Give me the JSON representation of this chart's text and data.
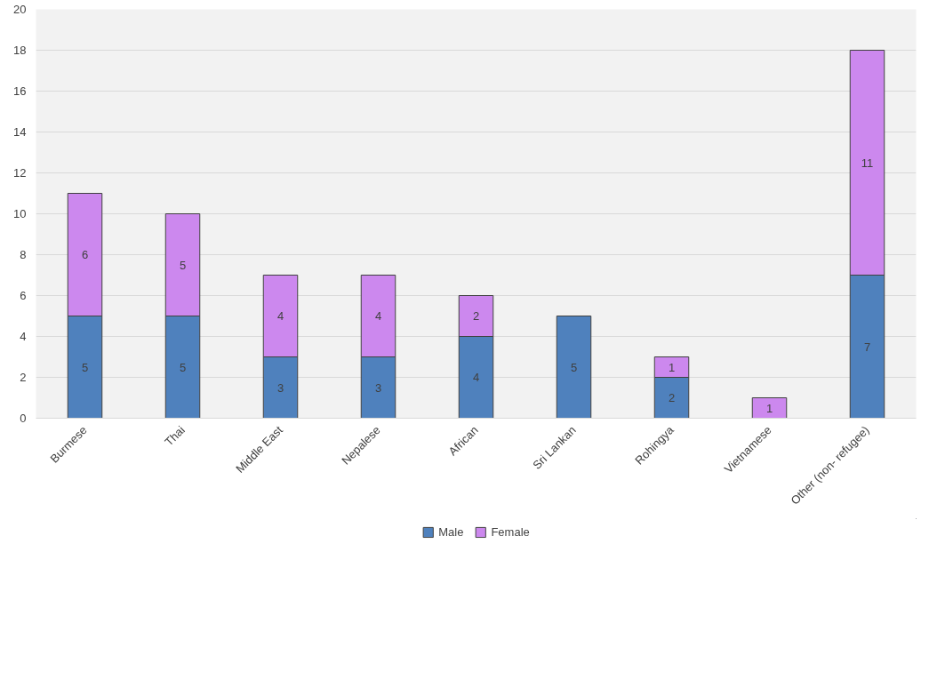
{
  "chart_data": {
    "type": "bar",
    "stacked": true,
    "categories": [
      "Burmese",
      "Thai",
      "Middle East",
      "Nepalese",
      "African",
      "Sri Lankan",
      "Rohingya",
      "Vietnamese",
      "Other (non- refugee)"
    ],
    "series": [
      {
        "name": "Male",
        "color": "#4f81bd",
        "values": [
          5,
          5,
          3,
          3,
          4,
          5,
          2,
          null,
          7
        ]
      },
      {
        "name": "Female",
        "color": "#cc88ee",
        "values": [
          6,
          5,
          4,
          4,
          2,
          null,
          1,
          1,
          11
        ]
      }
    ],
    "ylim": [
      0,
      20
    ],
    "yticks": [
      0,
      2,
      4,
      6,
      8,
      10,
      12,
      14,
      16,
      18,
      20
    ],
    "grid": "y",
    "legend": "bottom",
    "data_labels": true
  }
}
